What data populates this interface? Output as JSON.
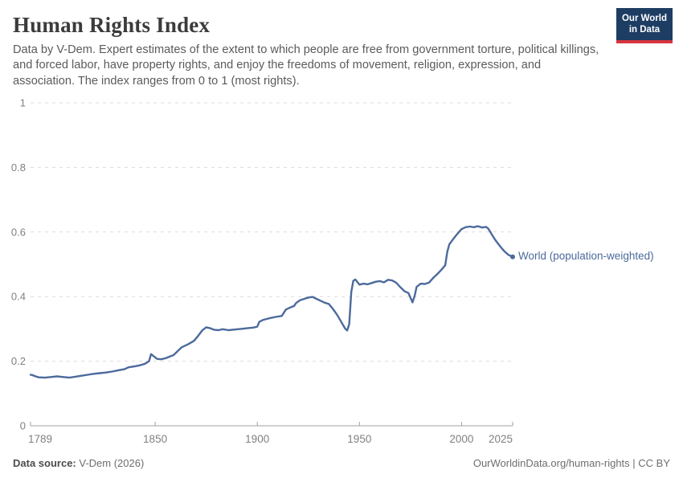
{
  "header": {
    "title": "Human Rights Index",
    "subtitle": "Data by V-Dem. Expert estimates of the extent to which people are free from government torture, political killings, and forced labor, have property rights, and enjoy the freedoms of movement, religion, expression, and association. The index ranges from 0 to 1 (most rights).",
    "logo": {
      "line1": "Our World",
      "line2": "in Data",
      "bg_color": "#1d3d63",
      "accent_color": "#d7353f"
    }
  },
  "chart_data": {
    "type": "line",
    "title": "Human Rights Index",
    "xlabel": "",
    "ylabel": "",
    "xlim": [
      1789,
      2025
    ],
    "ylim": [
      0,
      1
    ],
    "grid": "dashed-horizontal",
    "legend_position": "end-of-line-label",
    "x_ticks": [
      {
        "value": 1789,
        "label": "1789"
      },
      {
        "value": 1850,
        "label": "1850"
      },
      {
        "value": 1900,
        "label": "1900"
      },
      {
        "value": 1950,
        "label": "1950"
      },
      {
        "value": 2000,
        "label": "2000"
      },
      {
        "value": 2025,
        "label": "2025"
      }
    ],
    "y_ticks": [
      {
        "value": 0,
        "label": "0"
      },
      {
        "value": 0.2,
        "label": "0.2"
      },
      {
        "value": 0.4,
        "label": "0.4"
      },
      {
        "value": 0.6,
        "label": "0.6"
      },
      {
        "value": 0.8,
        "label": "0.8"
      },
      {
        "value": 1,
        "label": "1"
      }
    ],
    "series": [
      {
        "name": "World (population-weighted)",
        "color": "#4c6a9c",
        "points": [
          [
            1789,
            0.158
          ],
          [
            1790,
            0.157
          ],
          [
            1791,
            0.154
          ],
          [
            1793,
            0.15
          ],
          [
            1796,
            0.149
          ],
          [
            1799,
            0.151
          ],
          [
            1802,
            0.153
          ],
          [
            1805,
            0.151
          ],
          [
            1808,
            0.149
          ],
          [
            1811,
            0.152
          ],
          [
            1814,
            0.155
          ],
          [
            1817,
            0.158
          ],
          [
            1820,
            0.161
          ],
          [
            1823,
            0.163
          ],
          [
            1826,
            0.165
          ],
          [
            1829,
            0.168
          ],
          [
            1832,
            0.172
          ],
          [
            1835,
            0.175
          ],
          [
            1837,
            0.181
          ],
          [
            1839,
            0.183
          ],
          [
            1841,
            0.185
          ],
          [
            1843,
            0.188
          ],
          [
            1845,
            0.192
          ],
          [
            1847,
            0.2
          ],
          [
            1848,
            0.222
          ],
          [
            1849,
            0.217
          ],
          [
            1851,
            0.207
          ],
          [
            1853,
            0.206
          ],
          [
            1855,
            0.209
          ],
          [
            1857,
            0.214
          ],
          [
            1859,
            0.219
          ],
          [
            1861,
            0.231
          ],
          [
            1863,
            0.243
          ],
          [
            1866,
            0.252
          ],
          [
            1869,
            0.263
          ],
          [
            1871,
            0.278
          ],
          [
            1873,
            0.295
          ],
          [
            1875,
            0.305
          ],
          [
            1877,
            0.302
          ],
          [
            1879,
            0.297
          ],
          [
            1881,
            0.296
          ],
          [
            1883,
            0.299
          ],
          [
            1886,
            0.296
          ],
          [
            1889,
            0.298
          ],
          [
            1892,
            0.3
          ],
          [
            1895,
            0.302
          ],
          [
            1898,
            0.304
          ],
          [
            1900,
            0.307
          ],
          [
            1901,
            0.322
          ],
          [
            1903,
            0.328
          ],
          [
            1906,
            0.333
          ],
          [
            1909,
            0.337
          ],
          [
            1912,
            0.34
          ],
          [
            1914,
            0.36
          ],
          [
            1916,
            0.366
          ],
          [
            1918,
            0.371
          ],
          [
            1919,
            0.38
          ],
          [
            1921,
            0.389
          ],
          [
            1923,
            0.393
          ],
          [
            1925,
            0.397
          ],
          [
            1927,
            0.399
          ],
          [
            1929,
            0.393
          ],
          [
            1931,
            0.387
          ],
          [
            1933,
            0.381
          ],
          [
            1935,
            0.377
          ],
          [
            1937,
            0.362
          ],
          [
            1939,
            0.344
          ],
          [
            1941,
            0.323
          ],
          [
            1943,
            0.301
          ],
          [
            1944,
            0.295
          ],
          [
            1945,
            0.315
          ],
          [
            1946,
            0.415
          ],
          [
            1947,
            0.449
          ],
          [
            1948,
            0.453
          ],
          [
            1950,
            0.437
          ],
          [
            1952,
            0.44
          ],
          [
            1954,
            0.438
          ],
          [
            1956,
            0.442
          ],
          [
            1958,
            0.446
          ],
          [
            1960,
            0.448
          ],
          [
            1962,
            0.444
          ],
          [
            1964,
            0.452
          ],
          [
            1966,
            0.45
          ],
          [
            1968,
            0.443
          ],
          [
            1970,
            0.429
          ],
          [
            1972,
            0.417
          ],
          [
            1974,
            0.411
          ],
          [
            1976,
            0.382
          ],
          [
            1977,
            0.402
          ],
          [
            1978,
            0.43
          ],
          [
            1980,
            0.44
          ],
          [
            1982,
            0.439
          ],
          [
            1984,
            0.443
          ],
          [
            1986,
            0.457
          ],
          [
            1988,
            0.469
          ],
          [
            1990,
            0.482
          ],
          [
            1992,
            0.497
          ],
          [
            1993,
            0.538
          ],
          [
            1994,
            0.562
          ],
          [
            1996,
            0.579
          ],
          [
            1998,
            0.595
          ],
          [
            2000,
            0.609
          ],
          [
            2002,
            0.615
          ],
          [
            2004,
            0.617
          ],
          [
            2006,
            0.615
          ],
          [
            2008,
            0.618
          ],
          [
            2010,
            0.614
          ],
          [
            2012,
            0.616
          ],
          [
            2013,
            0.611
          ],
          [
            2014,
            0.601
          ],
          [
            2015,
            0.59
          ],
          [
            2016,
            0.58
          ],
          [
            2017,
            0.571
          ],
          [
            2018,
            0.563
          ],
          [
            2019,
            0.555
          ],
          [
            2020,
            0.547
          ],
          [
            2021,
            0.54
          ],
          [
            2022,
            0.534
          ],
          [
            2023,
            0.529
          ],
          [
            2024,
            0.526
          ],
          [
            2025,
            0.523
          ]
        ]
      }
    ]
  },
  "footer": {
    "source_label": "Data source:",
    "source_value": " V-Dem (2026)",
    "credit": "OurWorldinData.org/human-rights | CC BY"
  },
  "colors": {
    "title_text": "#3b3b3b",
    "subtitle_text": "#5b5b5b",
    "axis_text": "#808080",
    "gridline": "#dcdcdc",
    "axis_line": "#a1a1a1",
    "line": "#4c6a9c",
    "logo_bg": "#1d3d63",
    "logo_accent": "#d7353f"
  }
}
